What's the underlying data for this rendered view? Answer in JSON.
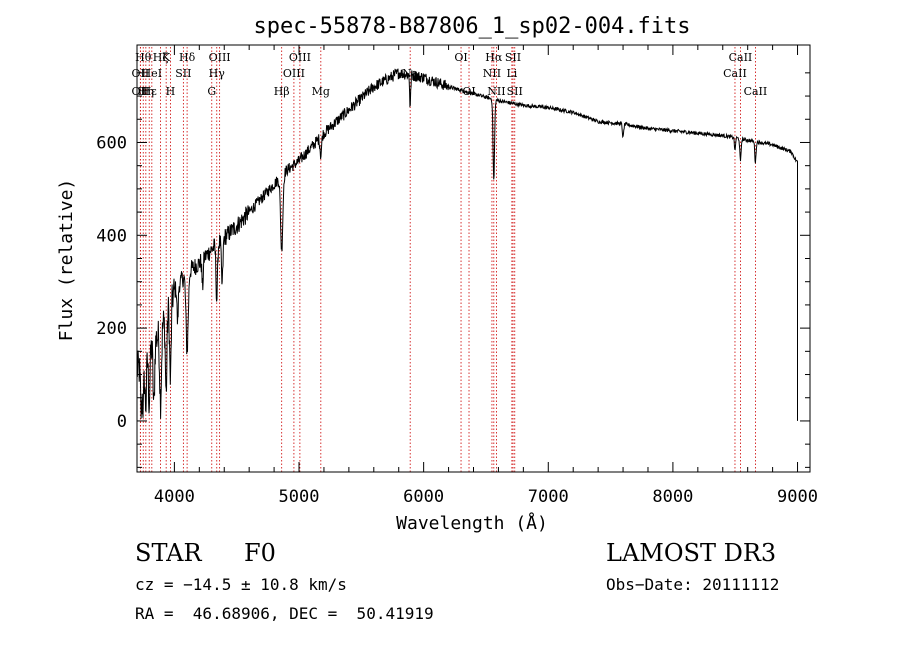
{
  "chart_data": {
    "type": "line",
    "title": "spec-55878-B87806_1_sp02-004.fits",
    "xlabel": "Wavelength (Å)",
    "ylabel": "Flux (relative)",
    "xlim": [
      3700,
      9100
    ],
    "ylim": [
      -110,
      810
    ],
    "x_ticks": [
      4000,
      5000,
      6000,
      7000,
      8000,
      9000
    ],
    "y_ticks": [
      0,
      200,
      400,
      600
    ],
    "series": [
      {
        "name": "flux",
        "continuum_x": [
          3700,
          3750,
          3800,
          3900,
          4000,
          4100,
          4200,
          4300,
          4400,
          4500,
          4600,
          4700,
          4800,
          4900,
          5000,
          5200,
          5400,
          5600,
          5800,
          6000,
          6200,
          6400,
          6600,
          6800,
          7000,
          7200,
          7400,
          7600,
          7800,
          8000,
          8200,
          8400,
          8600,
          8800,
          8950,
          8990
        ],
        "continuum_y": [
          110,
          120,
          150,
          200,
          280,
          320,
          340,
          370,
          395,
          420,
          450,
          480,
          510,
          540,
          560,
          620,
          670,
          720,
          750,
          740,
          720,
          705,
          690,
          680,
          675,
          665,
          645,
          640,
          630,
          625,
          620,
          615,
          605,
          595,
          580,
          560
        ],
        "absorption_x": [
          3734,
          3750,
          3770,
          3798,
          3835,
          3889,
          3934,
          3968,
          4026,
          4102,
          4226,
          4340,
          4383,
          4861,
          5175,
          5892,
          6563,
          7600,
          8498,
          8542,
          8662
        ],
        "absorption_depth": [
          100,
          90,
          100,
          110,
          140,
          150,
          170,
          170,
          80,
          170,
          60,
          120,
          100,
          160,
          40,
          70,
          175,
          30,
          30,
          50,
          45
        ],
        "absorption_width": [
          6,
          5,
          6,
          6,
          6,
          7,
          6,
          6,
          5,
          9,
          5,
          6,
          6,
          9,
          6,
          4,
          6,
          5,
          4,
          5,
          5
        ],
        "drop_x": [
          8990,
          9000
        ],
        "drop_y": [
          560,
          0
        ]
      }
    ],
    "lines": [
      {
        "x": 3727,
        "label": "OII",
        "row": 1
      },
      {
        "x": 3727,
        "label": "OII",
        "row": 2
      },
      {
        "x": 3750,
        "label": "Hθ",
        "row": 0
      },
      {
        "x": 3771,
        "label": "Hη",
        "row": 2
      },
      {
        "x": 3798,
        "label": "Hε",
        "row": 2
      },
      {
        "x": 3819,
        "label": "HeI",
        "row": 1
      },
      {
        "x": 3889,
        "label": "Hζ",
        "row": 0
      },
      {
        "x": 3934,
        "label": "K",
        "row": 0
      },
      {
        "x": 3968,
        "label": "H",
        "row": 2
      },
      {
        "x": 4072,
        "label": "SII",
        "row": 1
      },
      {
        "x": 4102,
        "label": "Hδ",
        "row": 0
      },
      {
        "x": 4300,
        "label": "G",
        "row": 2
      },
      {
        "x": 4340,
        "label": "Hγ",
        "row": 1
      },
      {
        "x": 4363,
        "label": "OIII",
        "row": 0
      },
      {
        "x": 4861,
        "label": "Hβ",
        "row": 2
      },
      {
        "x": 4959,
        "label": "OIII",
        "row": 1
      },
      {
        "x": 5007,
        "label": "OIII",
        "row": 0
      },
      {
        "x": 5175,
        "label": "Mg",
        "row": 2
      },
      {
        "x": 5892,
        "label": "Na",
        "row": 1
      },
      {
        "x": 6300,
        "label": "OI",
        "row": 0
      },
      {
        "x": 6364,
        "label": "OI",
        "row": 2
      },
      {
        "x": 6548,
        "label": "NII",
        "row": 1
      },
      {
        "x": 6563,
        "label": "Hα",
        "row": 0
      },
      {
        "x": 6584,
        "label": "NII",
        "row": 2
      },
      {
        "x": 6708,
        "label": "Li",
        "row": 1
      },
      {
        "x": 6717,
        "label": "SII",
        "row": 0
      },
      {
        "x": 6731,
        "label": "SII",
        "row": 2
      },
      {
        "x": 8498,
        "label": "CaII",
        "row": 1
      },
      {
        "x": 8542,
        "label": "CaII",
        "row": 0
      },
      {
        "x": 8662,
        "label": "CaII",
        "row": 2
      }
    ]
  },
  "info": {
    "class_label": "STAR",
    "subclass": "F0",
    "survey": "LAMOST DR3",
    "cz": "cz = −14.5 ± 10.8 km/s",
    "obs_date": "Obs−Date: 20111112",
    "coords": "RA =  46.68906, DEC =  50.41919"
  }
}
